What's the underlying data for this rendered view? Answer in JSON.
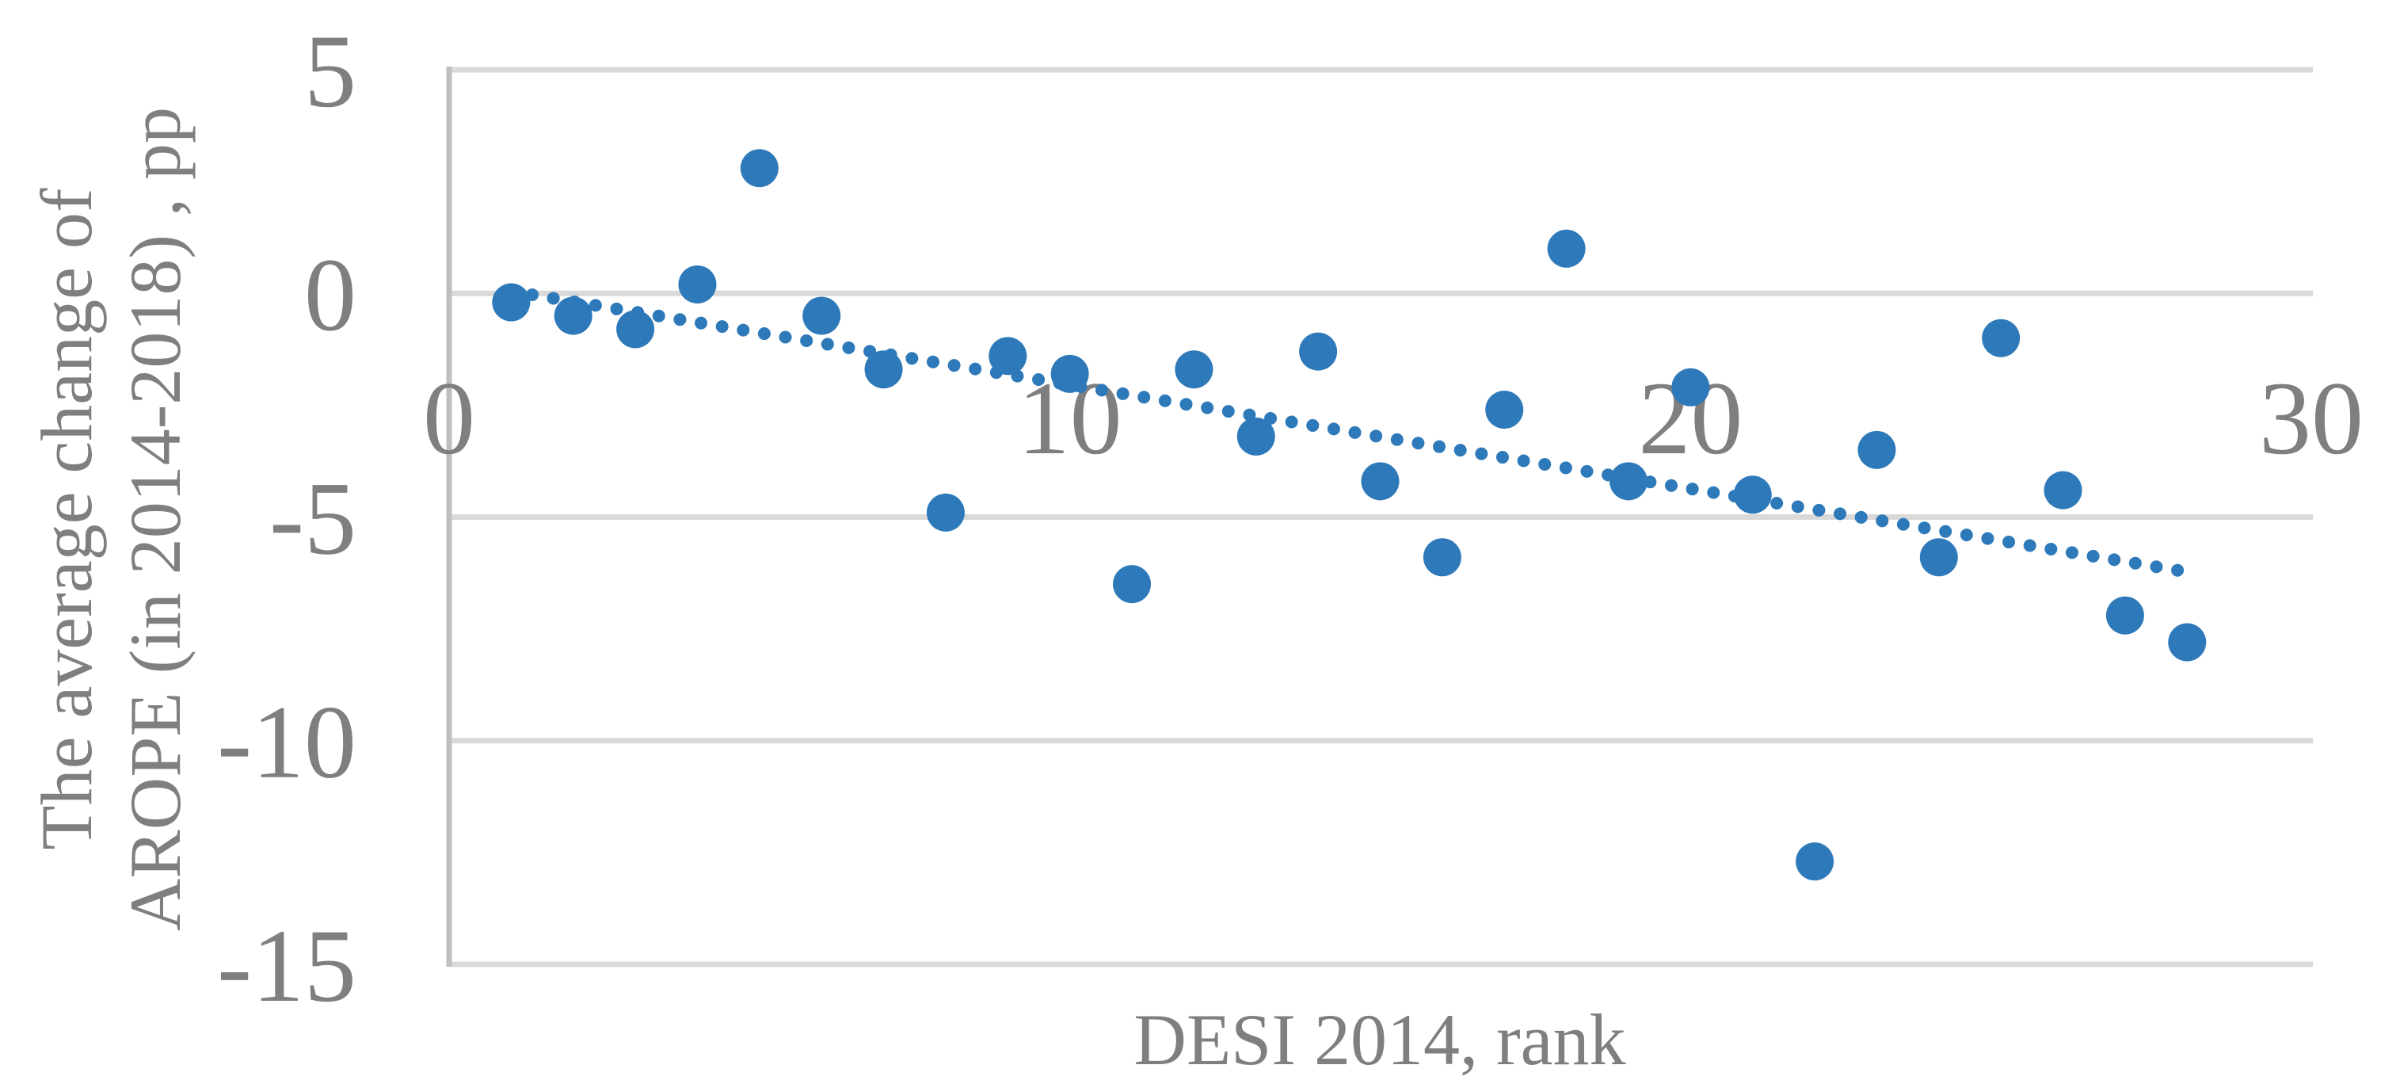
{
  "chart_data": {
    "type": "scatter",
    "title": "",
    "xlabel": "DESI 2014, rank",
    "ylabel_line1": "The average change of",
    "ylabel_line2": "AROPE (in 2014-2018) , pp",
    "x": [
      1,
      2,
      3,
      4,
      5,
      6,
      7,
      8,
      9,
      10,
      11,
      12,
      13,
      14,
      15,
      16,
      17,
      18,
      19,
      20,
      21,
      22,
      23,
      24,
      25,
      26,
      27,
      28
    ],
    "y": [
      -0.2,
      -0.5,
      -0.8,
      0.2,
      2.8,
      -0.5,
      -1.7,
      -4.9,
      -1.4,
      -1.8,
      -6.5,
      -1.7,
      -3.2,
      -1.3,
      -4.2,
      -5.9,
      -2.6,
      1.0,
      -4.2,
      -2.1,
      -4.5,
      -12.7,
      -3.5,
      -5.9,
      -1.0,
      -4.4,
      -7.2,
      -7.8
    ],
    "xlim": [
      0,
      30
    ],
    "ylim": [
      -15,
      5
    ],
    "xticks": [
      0,
      10,
      20,
      30
    ],
    "yticks": [
      5,
      0,
      -5,
      -10,
      -15
    ],
    "grid": "horizontal-only",
    "legend": "none",
    "trendline": {
      "kind": "linear",
      "style": "dotted",
      "x_start": 1,
      "x_end": 28
    },
    "colors": {
      "marker": "#2E79B9",
      "trend": "#2E79B9",
      "gridline": "#D9D9D9",
      "axis_line": "#BFBFBF",
      "text": "#7F7F7F",
      "background": "#FFFFFF"
    }
  }
}
